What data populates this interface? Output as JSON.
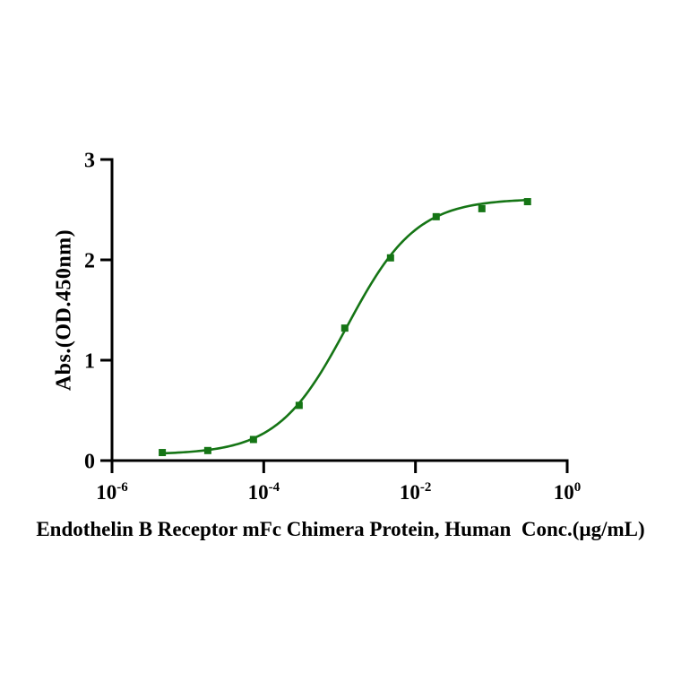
{
  "chart_data": {
    "type": "scatter",
    "title": "Endothelin B Receptor mFc Chimera Protein, Human  Conc.(µg/mL)",
    "ylabel": "Abs.(OD.450nm)",
    "x_scale": "log10",
    "xlim": [
      1e-06,
      1
    ],
    "ylim": [
      0,
      3
    ],
    "grid": false,
    "legend": "none",
    "x": [
      4.6e-06,
      1.83e-05,
      7.32e-05,
      0.000293,
      0.00117,
      0.00469,
      0.01875,
      0.075,
      0.3
    ],
    "y": [
      0.08,
      0.1,
      0.21,
      0.55,
      1.32,
      2.02,
      2.43,
      2.51,
      2.58
    ],
    "fit": {
      "model": "4PL",
      "bottom": 0.06,
      "top": 2.61,
      "ec50": 0.00125,
      "hill": 0.95
    },
    "xticks": [
      {
        "base": "10",
        "exp": "-6",
        "value": 1e-06
      },
      {
        "base": "10",
        "exp": "-4",
        "value": 0.0001
      },
      {
        "base": "10",
        "exp": "-2",
        "value": 0.01
      },
      {
        "base": "10",
        "exp": "0",
        "value": 1
      }
    ],
    "yticks": [
      {
        "label": "0",
        "value": 0
      },
      {
        "label": "1",
        "value": 1
      },
      {
        "label": "2",
        "value": 2
      },
      {
        "label": "3",
        "value": 3
      }
    ],
    "colors": {
      "series": "#157515",
      "axis": "#000000",
      "background": "#ffffff"
    },
    "marker": {
      "shape": "square",
      "size": 8
    },
    "line_width": 2.6
  }
}
